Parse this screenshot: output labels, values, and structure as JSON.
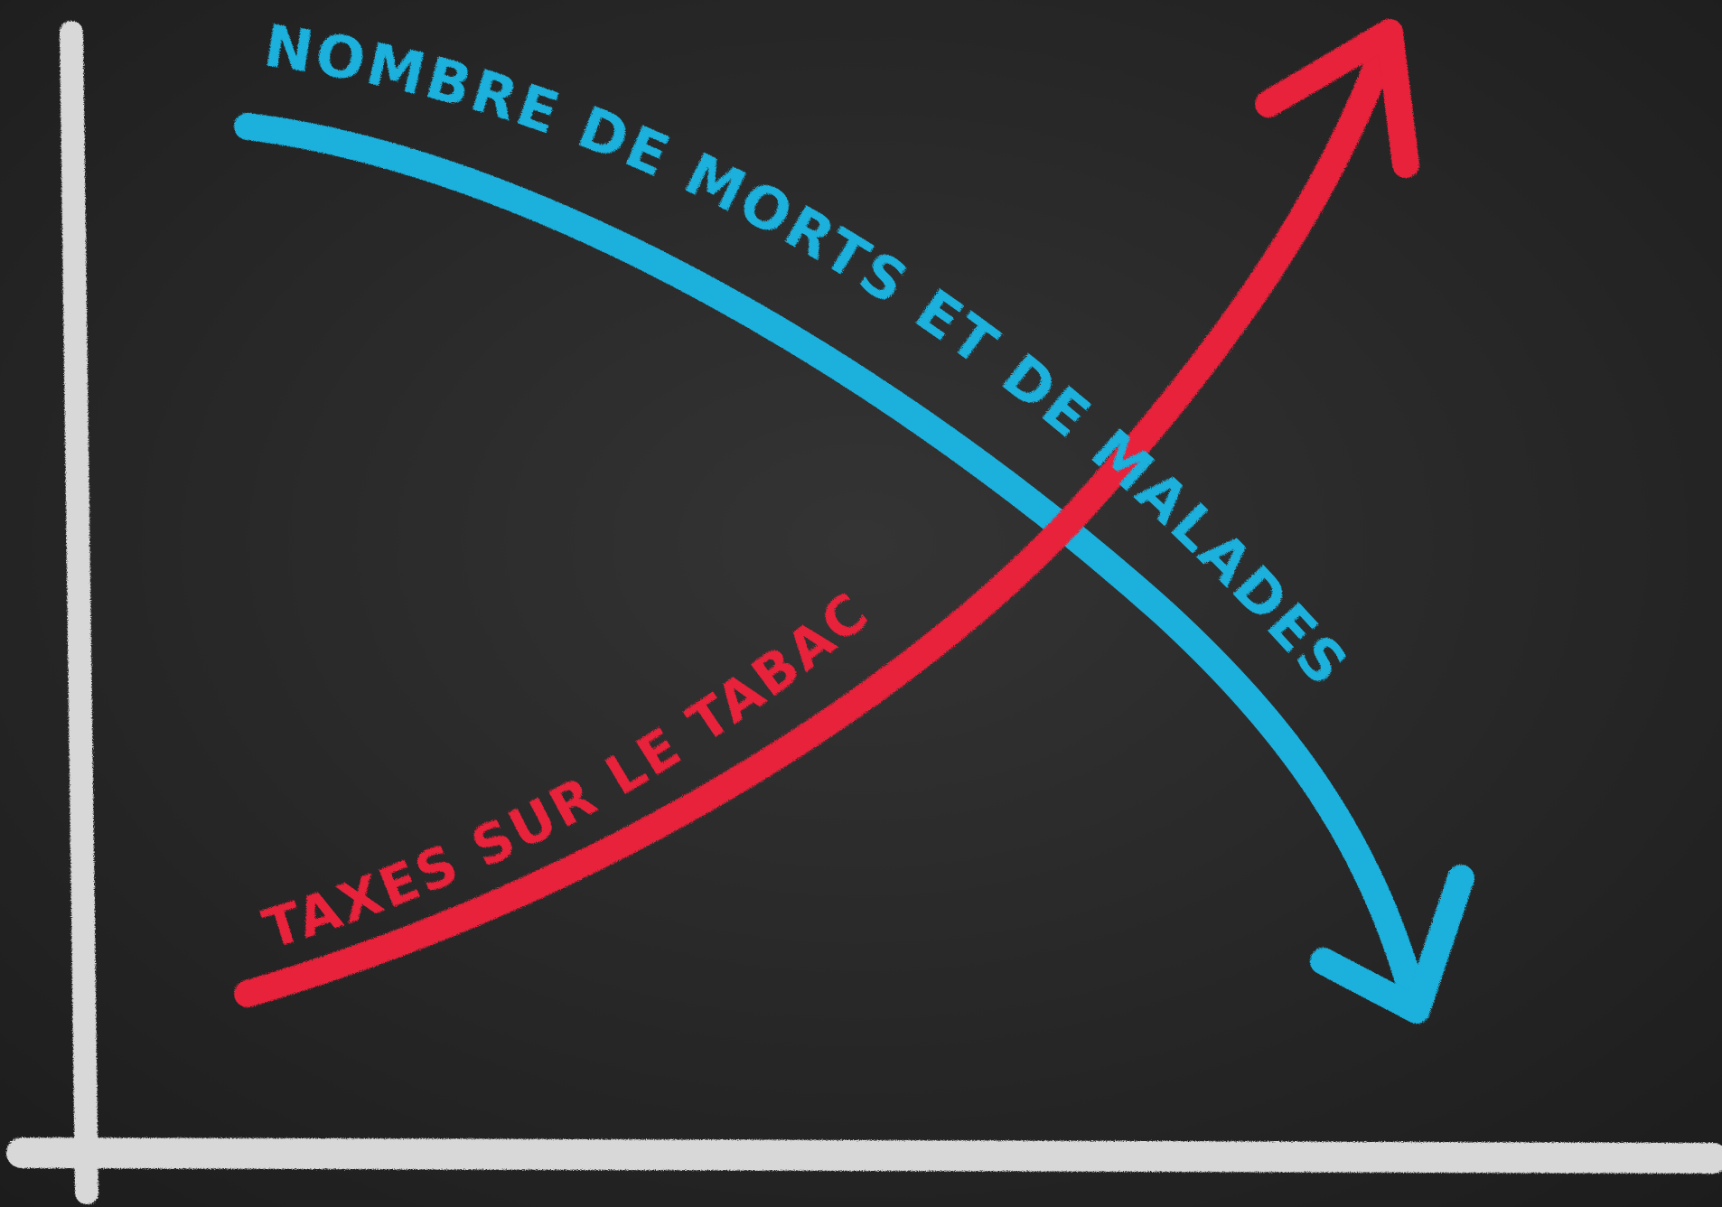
{
  "curves": [
    {
      "label": "NOMBRE DE MORTS ET DE MALADES"
    },
    {
      "label": "TAXES SUR LE TABAC"
    }
  ]
}
